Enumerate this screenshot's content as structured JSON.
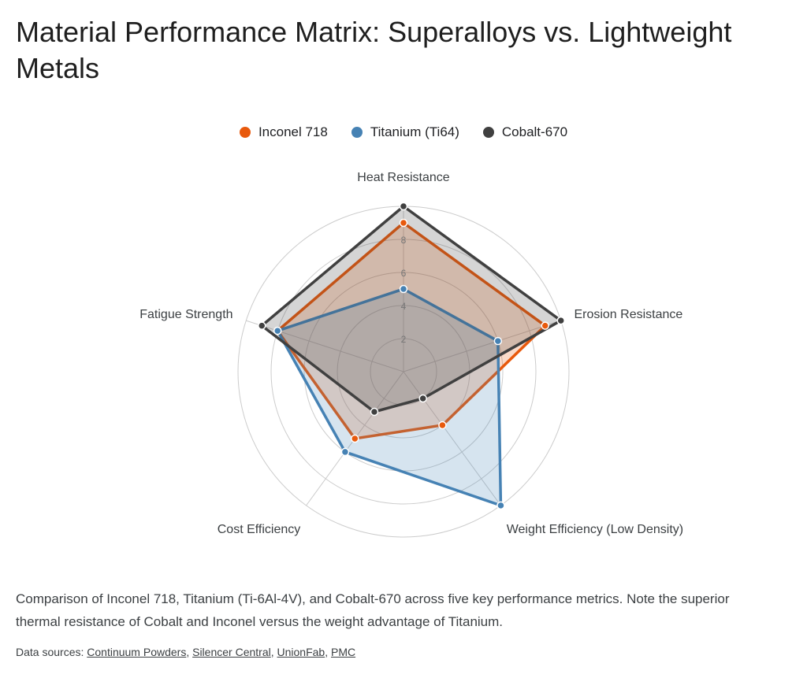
{
  "title": "Material Performance Matrix: Superalloys vs. Lightweight Metals",
  "caption": "Comparison of Inconel 718, Titanium (Ti-6Al-4V), and Cobalt-670 across five key performance metrics. Note the superior thermal resistance of Cobalt and Inconel versus the weight advantage of Titanium.",
  "sources": {
    "prefix": "Data sources:",
    "links": [
      "Continuum Powders",
      "Silencer Central",
      "UnionFab",
      "PMC"
    ]
  },
  "colors": {
    "inconel": "#e8590c",
    "titanium": "#4682b4",
    "cobalt": "#404040",
    "grid": "#cccccc"
  },
  "chart_data": {
    "type": "radar",
    "title": "Material Performance Matrix: Superalloys vs. Lightweight Metals",
    "axes": [
      "Heat Resistance",
      "Erosion Resistance",
      "Weight Efficiency (Low Density)",
      "Cost Efficiency",
      "Fatigue Strength"
    ],
    "rlim": [
      0,
      10
    ],
    "ticks": [
      "2",
      "4",
      "6",
      "8"
    ],
    "legend_position": "top",
    "grid": true,
    "series": [
      {
        "name": "Inconel 718",
        "color": "#e8590c",
        "values": [
          9,
          9,
          4,
          5,
          8
        ]
      },
      {
        "name": "Titanium (Ti64)",
        "color": "#4682b4",
        "values": [
          5,
          6,
          10,
          6,
          8
        ]
      },
      {
        "name": "Cobalt-670",
        "color": "#404040",
        "values": [
          10,
          10,
          2,
          3,
          9
        ]
      }
    ]
  }
}
